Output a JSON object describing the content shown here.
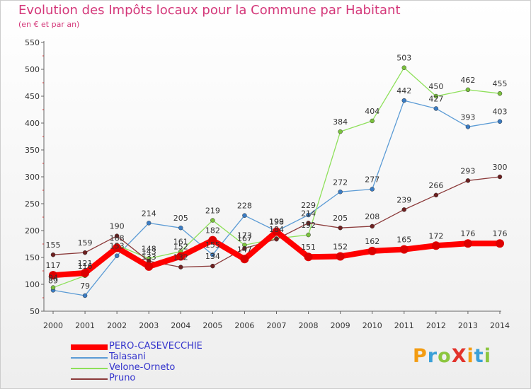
{
  "title": "Evolution des Impôts locaux pour la Commune par Habitant",
  "subtitle": "(en € et par an)",
  "logo": {
    "text": "ProXiti",
    "letters": [
      {
        "ch": "P",
        "color": "#f39c12"
      },
      {
        "ch": "r",
        "color": "#3aa0d8"
      },
      {
        "ch": "o",
        "color": "#8cc63f"
      },
      {
        "ch": "X",
        "color": "#e2322b"
      },
      {
        "ch": "i",
        "color": "#f39c12"
      },
      {
        "ch": "t",
        "color": "#3aa0d8"
      },
      {
        "ch": "i",
        "color": "#8cc63f"
      }
    ]
  },
  "chart_data": {
    "type": "line",
    "x": [
      "2000",
      "2001",
      "2002",
      "2003",
      "2004",
      "2005",
      "2006",
      "2007",
      "2008",
      "2009",
      "2010",
      "2011",
      "2012",
      "2013",
      "2014"
    ],
    "ylim": [
      50,
      550
    ],
    "yticks": [
      50,
      100,
      150,
      200,
      250,
      300,
      350,
      400,
      450,
      500,
      550
    ],
    "grid": false,
    "legend_position": "bottom-left",
    "series": [
      {
        "name": "PERO-CASEVECCHIE",
        "color": "#ff0000",
        "marker": "#dd0000",
        "width": 8,
        "values": [
          117,
          121,
          168,
          133,
          152,
          182,
          147,
          198,
          151,
          152,
          162,
          165,
          172,
          176,
          176
        ],
        "labels": [
          "117",
          "121",
          "168",
          "133",
          "152",
          "182",
          "147",
          "198",
          "151",
          "152",
          "162",
          "165",
          "172",
          "176",
          "176"
        ]
      },
      {
        "name": "Talasani",
        "color": "#5b9bd5",
        "marker": "#3a7cc4",
        "width": 1.3,
        "values": [
          89,
          79,
          153,
          214,
          205,
          155,
          228,
          199,
          229,
          272,
          277,
          442,
          427,
          393,
          403
        ],
        "labels": [
          "89",
          "79",
          "153",
          "214",
          "205",
          "155",
          "228",
          "199",
          "229",
          "272",
          "277",
          "442",
          "427",
          "393",
          "403"
        ]
      },
      {
        "name": "Velone-Orneto",
        "color": "#8ee05a",
        "marker": "#7bc23d",
        "width": 1.3,
        "values": [
          94,
          116,
          173,
          148,
          161,
          219,
          173,
          185,
          192,
          384,
          404,
          503,
          450,
          462,
          455
        ],
        "labels": [
          "94",
          "116",
          "",
          "148",
          "161",
          "219",
          "173",
          "",
          "192",
          "384",
          "404",
          "503",
          "450",
          "462",
          "455"
        ]
      },
      {
        "name": "Pruno",
        "color": "#8b3a3a",
        "marker": "#6e2020",
        "width": 1.3,
        "values": [
          155,
          159,
          190,
          143,
          132,
          134,
          167,
          184,
          214,
          205,
          208,
          239,
          266,
          293,
          300
        ],
        "labels": [
          "155",
          "159",
          "190",
          "143",
          "132",
          "134",
          "167",
          "184",
          "214",
          "205",
          "208",
          "239",
          "266",
          "293",
          "300"
        ]
      }
    ]
  }
}
